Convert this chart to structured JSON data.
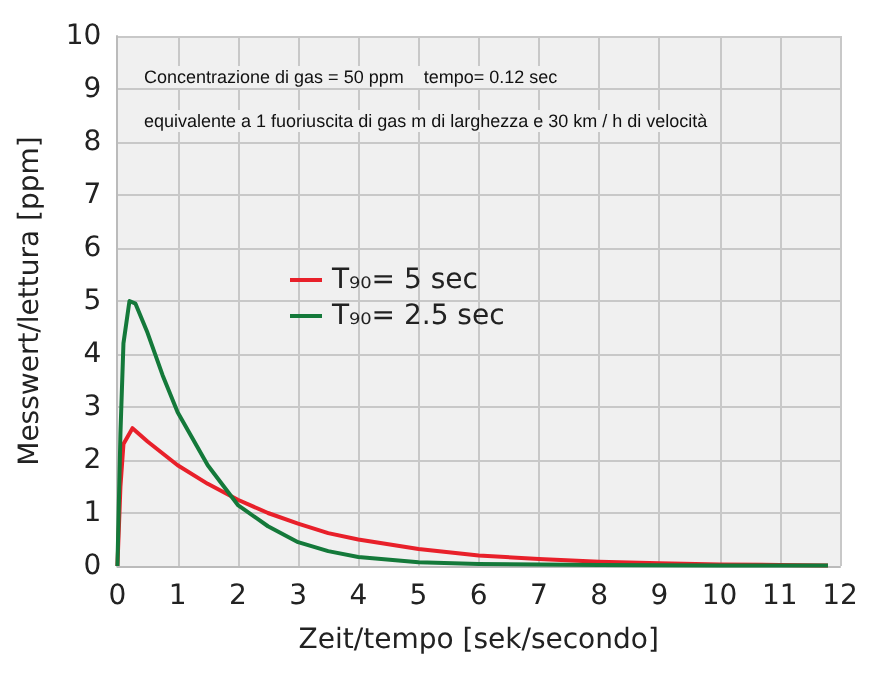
{
  "chart_data": {
    "type": "line",
    "xlabel": "Zeit/tempo [sek/secondo]",
    "ylabel": "Messwert/lettura [ppm]",
    "annotations": [
      "Concentrazione di gas = 50 ppm    tempo= 0.12 sec",
      "equivalente a 1 fuoriuscita di gas m di larghezza e 30 km / h di velocità"
    ],
    "xlim": [
      0,
      12
    ],
    "xticks": [
      0,
      1,
      2,
      3,
      4,
      5,
      6,
      7,
      8,
      9,
      10,
      11,
      12
    ],
    "ylim": [
      0,
      10
    ],
    "yticks": [
      0,
      1,
      2,
      3,
      4,
      5,
      6,
      7,
      8,
      9,
      10
    ],
    "grid": true,
    "legend": "left",
    "marker": "none",
    "line_style": "solid",
    "series": [
      {
        "name": "T₉₀= 5 sec",
        "color": "#e8202a",
        "x": [
          0,
          0.05,
          0.1,
          0.25,
          0.5,
          1,
          1.5,
          2,
          2.5,
          3,
          3.5,
          4,
          5,
          6,
          7,
          8,
          9,
          10,
          11,
          11.8
        ],
        "values": [
          0,
          1.5,
          2.3,
          2.6,
          2.35,
          1.9,
          1.55,
          1.25,
          1.0,
          0.8,
          0.62,
          0.5,
          0.32,
          0.2,
          0.13,
          0.08,
          0.05,
          0.03,
          0.02,
          0.01
        ]
      },
      {
        "name": "T₉₀= 2.5 sec",
        "color": "#14793a",
        "x": [
          0,
          0.05,
          0.1,
          0.2,
          0.3,
          0.5,
          0.75,
          1,
          1.5,
          2,
          2.5,
          3,
          3.5,
          4,
          5,
          6,
          7,
          8,
          10,
          11.8
        ],
        "values": [
          0,
          2.5,
          4.2,
          5.0,
          4.95,
          4.4,
          3.6,
          2.9,
          1.9,
          1.15,
          0.75,
          0.45,
          0.28,
          0.17,
          0.07,
          0.04,
          0.03,
          0.02,
          0.01,
          0.01
        ]
      }
    ]
  }
}
